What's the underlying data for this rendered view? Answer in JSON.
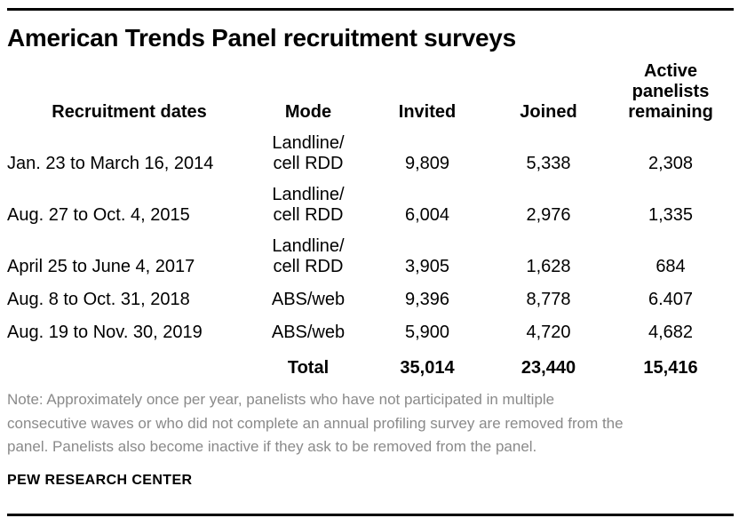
{
  "title": "American Trends Panel recruitment surveys",
  "table": {
    "headers": [
      "Recruitment dates",
      "Mode",
      "Invited",
      "Joined",
      "Active\npanelists\nremaining"
    ],
    "rows": [
      {
        "dates": "Jan. 23 to March 16, 2014",
        "mode": "Landline/\ncell RDD",
        "invited": "9,809",
        "joined": "5,338",
        "active": "2,308"
      },
      {
        "dates": "Aug. 27 to Oct. 4, 2015",
        "mode": "Landline/\ncell RDD",
        "invited": "6,004",
        "joined": "2,976",
        "active": "1,335"
      },
      {
        "dates": "April 25 to June 4, 2017",
        "mode": "Landline/\ncell RDD",
        "invited": "3,905",
        "joined": "1,628",
        "active": "684"
      },
      {
        "dates": "Aug. 8 to Oct. 31, 2018",
        "mode": "ABS/web",
        "invited": "9,396",
        "joined": "8,778",
        "active": "6.407"
      },
      {
        "dates": "Aug. 19 to Nov. 30, 2019",
        "mode": "ABS/web",
        "invited": "5,900",
        "joined": "4,720",
        "active": "4,682"
      }
    ],
    "total": {
      "dates": "",
      "label": "Total",
      "invited": "35,014",
      "joined": "23,440",
      "active": "15,416"
    }
  },
  "note": "Note: Approximately once per year, panelists who have not participated in multiple\nconsecutive waves or who did not complete an annual profiling survey are removed from the\npanel. Panelists also become inactive if they ask to be removed from the panel.",
  "source": "PEW RESEARCH CENTER",
  "colors": {
    "text": "#000000",
    "note_gray": "#8a8a8a",
    "rule": "#000000",
    "background": "#ffffff"
  },
  "chart_data": {
    "type": "table",
    "title": "American Trends Panel recruitment surveys",
    "columns": [
      "Recruitment dates",
      "Mode",
      "Invited",
      "Joined",
      "Active panelists remaining"
    ],
    "rows": [
      [
        "Jan. 23 to March 16, 2014",
        "Landline/cell RDD",
        "9,809",
        "5,338",
        "2,308"
      ],
      [
        "Aug. 27 to Oct. 4, 2015",
        "Landline/cell RDD",
        "6,004",
        "2,976",
        "1,335"
      ],
      [
        "April 25 to June 4, 2017",
        "Landline/cell RDD",
        "3,905",
        "1,628",
        "684"
      ],
      [
        "Aug. 8 to Oct. 31, 2018",
        "ABS/web",
        "9,396",
        "8,778",
        "6.407"
      ],
      [
        "Aug. 19 to Nov. 30, 2019",
        "ABS/web",
        "5,900",
        "4,720",
        "4,682"
      ],
      [
        "",
        "Total",
        "35,014",
        "23,440",
        "15,416"
      ]
    ],
    "note": "Note: Approximately once per year, panelists who have not participated in multiple consecutive waves or who did not complete an annual profiling survey are removed from the panel. Panelists also become inactive if they ask to be removed from the panel.",
    "source": "PEW RESEARCH CENTER"
  }
}
